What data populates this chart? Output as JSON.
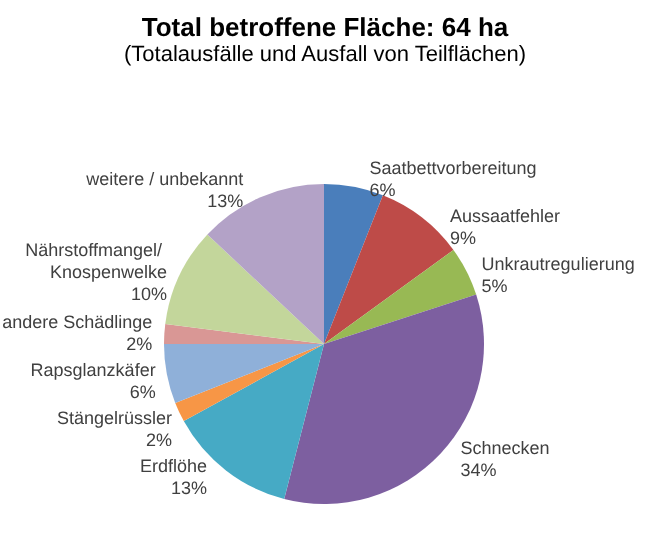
{
  "chart_data": {
    "type": "pie",
    "title": "Total betroffene Fläche: 64 ha",
    "subtitle": "(Totalausfälle und Ausfall von Teilflächen)",
    "categories": [
      "Saatbettvorbereitung",
      "Aussaatfehler",
      "Unkrautregulierung",
      "Schnecken",
      "Erdflöhe",
      "Stängelrüssler",
      "Rapsglanzkäfer",
      "andere Schädlinge",
      "Nährstoffmangel/ Knospenwelke",
      "weitere / unbekannt"
    ],
    "values": [
      6,
      9,
      5,
      34,
      13,
      2,
      6,
      2,
      10,
      13
    ],
    "value_labels": [
      "6%",
      "9%",
      "5%",
      "34%",
      "13%",
      "2%",
      "6%",
      "2%",
      "10%",
      "13%"
    ],
    "colors": [
      "#4a7ebb",
      "#be4b48",
      "#98b954",
      "#7d5fa0",
      "#46aac5",
      "#f79646",
      "#8fb0d9",
      "#d99795",
      "#c3d69b",
      "#b3a2c7"
    ],
    "legend": false
  }
}
